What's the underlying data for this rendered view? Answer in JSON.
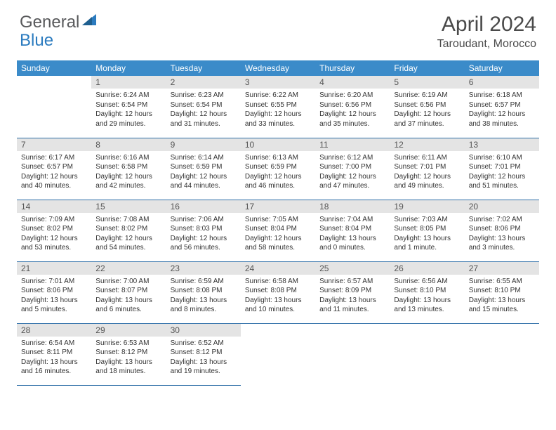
{
  "brand": {
    "part1": "General",
    "part2": "Blue"
  },
  "title": "April 2024",
  "location": "Taroudant, Morocco",
  "colors": {
    "header_bg": "#3b8bc9",
    "header_text": "#ffffff",
    "daynum_bg": "#e4e4e4",
    "row_border": "#2f6fa8",
    "brand_gray": "#58595b",
    "brand_blue": "#2b7bbf"
  },
  "day_headers": [
    "Sunday",
    "Monday",
    "Tuesday",
    "Wednesday",
    "Thursday",
    "Friday",
    "Saturday"
  ],
  "weeks": [
    [
      null,
      {
        "n": "1",
        "sr": "6:24 AM",
        "ss": "6:54 PM",
        "dl": "12 hours and 29 minutes."
      },
      {
        "n": "2",
        "sr": "6:23 AM",
        "ss": "6:54 PM",
        "dl": "12 hours and 31 minutes."
      },
      {
        "n": "3",
        "sr": "6:22 AM",
        "ss": "6:55 PM",
        "dl": "12 hours and 33 minutes."
      },
      {
        "n": "4",
        "sr": "6:20 AM",
        "ss": "6:56 PM",
        "dl": "12 hours and 35 minutes."
      },
      {
        "n": "5",
        "sr": "6:19 AM",
        "ss": "6:56 PM",
        "dl": "12 hours and 37 minutes."
      },
      {
        "n": "6",
        "sr": "6:18 AM",
        "ss": "6:57 PM",
        "dl": "12 hours and 38 minutes."
      }
    ],
    [
      {
        "n": "7",
        "sr": "6:17 AM",
        "ss": "6:57 PM",
        "dl": "12 hours and 40 minutes."
      },
      {
        "n": "8",
        "sr": "6:16 AM",
        "ss": "6:58 PM",
        "dl": "12 hours and 42 minutes."
      },
      {
        "n": "9",
        "sr": "6:14 AM",
        "ss": "6:59 PM",
        "dl": "12 hours and 44 minutes."
      },
      {
        "n": "10",
        "sr": "6:13 AM",
        "ss": "6:59 PM",
        "dl": "12 hours and 46 minutes."
      },
      {
        "n": "11",
        "sr": "6:12 AM",
        "ss": "7:00 PM",
        "dl": "12 hours and 47 minutes."
      },
      {
        "n": "12",
        "sr": "6:11 AM",
        "ss": "7:01 PM",
        "dl": "12 hours and 49 minutes."
      },
      {
        "n": "13",
        "sr": "6:10 AM",
        "ss": "7:01 PM",
        "dl": "12 hours and 51 minutes."
      }
    ],
    [
      {
        "n": "14",
        "sr": "7:09 AM",
        "ss": "8:02 PM",
        "dl": "12 hours and 53 minutes."
      },
      {
        "n": "15",
        "sr": "7:08 AM",
        "ss": "8:02 PM",
        "dl": "12 hours and 54 minutes."
      },
      {
        "n": "16",
        "sr": "7:06 AM",
        "ss": "8:03 PM",
        "dl": "12 hours and 56 minutes."
      },
      {
        "n": "17",
        "sr": "7:05 AM",
        "ss": "8:04 PM",
        "dl": "12 hours and 58 minutes."
      },
      {
        "n": "18",
        "sr": "7:04 AM",
        "ss": "8:04 PM",
        "dl": "13 hours and 0 minutes."
      },
      {
        "n": "19",
        "sr": "7:03 AM",
        "ss": "8:05 PM",
        "dl": "13 hours and 1 minute."
      },
      {
        "n": "20",
        "sr": "7:02 AM",
        "ss": "8:06 PM",
        "dl": "13 hours and 3 minutes."
      }
    ],
    [
      {
        "n": "21",
        "sr": "7:01 AM",
        "ss": "8:06 PM",
        "dl": "13 hours and 5 minutes."
      },
      {
        "n": "22",
        "sr": "7:00 AM",
        "ss": "8:07 PM",
        "dl": "13 hours and 6 minutes."
      },
      {
        "n": "23",
        "sr": "6:59 AM",
        "ss": "8:08 PM",
        "dl": "13 hours and 8 minutes."
      },
      {
        "n": "24",
        "sr": "6:58 AM",
        "ss": "8:08 PM",
        "dl": "13 hours and 10 minutes."
      },
      {
        "n": "25",
        "sr": "6:57 AM",
        "ss": "8:09 PM",
        "dl": "13 hours and 11 minutes."
      },
      {
        "n": "26",
        "sr": "6:56 AM",
        "ss": "8:10 PM",
        "dl": "13 hours and 13 minutes."
      },
      {
        "n": "27",
        "sr": "6:55 AM",
        "ss": "8:10 PM",
        "dl": "13 hours and 15 minutes."
      }
    ],
    [
      {
        "n": "28",
        "sr": "6:54 AM",
        "ss": "8:11 PM",
        "dl": "13 hours and 16 minutes."
      },
      {
        "n": "29",
        "sr": "6:53 AM",
        "ss": "8:12 PM",
        "dl": "13 hours and 18 minutes."
      },
      {
        "n": "30",
        "sr": "6:52 AM",
        "ss": "8:12 PM",
        "dl": "13 hours and 19 minutes."
      },
      null,
      null,
      null,
      null
    ]
  ],
  "labels": {
    "sunrise": "Sunrise:",
    "sunset": "Sunset:",
    "daylight": "Daylight:"
  }
}
